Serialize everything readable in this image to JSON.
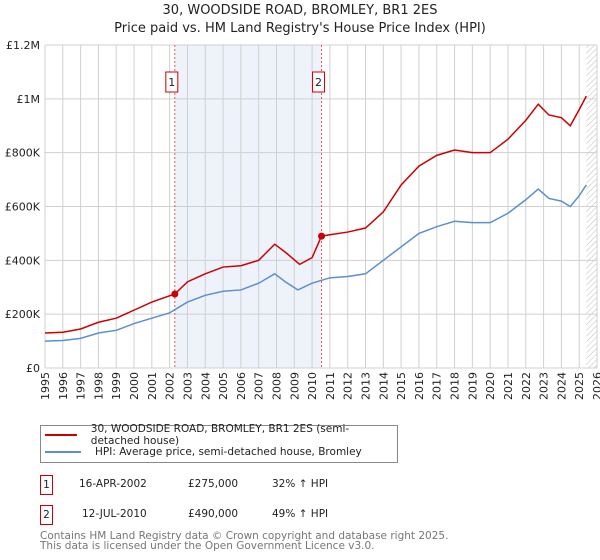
{
  "chart_data": {
    "type": "line",
    "title": "30, WOODSIDE ROAD, BROMLEY, BR1 2ES",
    "subtitle": "Price paid vs. HM Land Registry's House Price Index (HPI)",
    "xlim": [
      1995,
      2026
    ],
    "ylim": [
      0,
      1200000
    ],
    "x_ticks": [
      "1995",
      "1996",
      "1997",
      "1998",
      "1999",
      "2000",
      "2001",
      "2002",
      "2003",
      "2004",
      "2005",
      "2006",
      "2007",
      "2008",
      "2009",
      "2010",
      "2011",
      "2012",
      "2013",
      "2014",
      "2015",
      "2016",
      "2017",
      "2018",
      "2019",
      "2020",
      "2021",
      "2022",
      "2023",
      "2024",
      "2025",
      "2026"
    ],
    "y_ticks": [
      {
        "v": 0,
        "label": "£0"
      },
      {
        "v": 200000,
        "label": "£200K"
      },
      {
        "v": 400000,
        "label": "£400K"
      },
      {
        "v": 600000,
        "label": "£600K"
      },
      {
        "v": 800000,
        "label": "£800K"
      },
      {
        "v": 1000000,
        "label": "£1M"
      },
      {
        "v": 1200000,
        "label": "£1.2M"
      }
    ],
    "grid": true,
    "shaded_range": [
      2002.29,
      2010.53
    ],
    "hatched_from": 2025.4,
    "series": [
      {
        "name": "30, WOODSIDE ROAD, BROMLEY, BR1 2ES (semi-detached house)",
        "color": "#cc0000",
        "x": [
          1995,
          1996,
          1997,
          1998,
          1999,
          2000,
          2001,
          2002.29,
          2003,
          2004,
          2005,
          2006,
          2007,
          2007.9,
          2008.5,
          2009.3,
          2010,
          2010.53,
          2011,
          2012,
          2013,
          2014,
          2015,
          2016,
          2017,
          2018,
          2019,
          2020,
          2021,
          2022,
          2022.7,
          2023.3,
          2024,
          2024.5,
          2025,
          2025.4
        ],
        "y": [
          130000,
          133000,
          145000,
          170000,
          185000,
          215000,
          245000,
          275000,
          320000,
          350000,
          375000,
          380000,
          400000,
          460000,
          430000,
          385000,
          410000,
          490000,
          495000,
          505000,
          520000,
          580000,
          680000,
          750000,
          790000,
          810000,
          800000,
          800000,
          850000,
          920000,
          980000,
          940000,
          930000,
          900000,
          960000,
          1010000
        ]
      },
      {
        "name": "HPI: Average price, semi-detached house, Bromley",
        "color": "#5b8fd0",
        "x": [
          1995,
          1996,
          1997,
          1998,
          1999,
          2000,
          2001,
          2002,
          2003,
          2004,
          2005,
          2006,
          2007,
          2007.9,
          2008.5,
          2009.2,
          2010,
          2011,
          2012,
          2013,
          2014,
          2015,
          2016,
          2017,
          2018,
          2019,
          2020,
          2021,
          2022,
          2022.7,
          2023.3,
          2024,
          2024.5,
          2025,
          2025.4
        ],
        "y": [
          100000,
          102000,
          110000,
          130000,
          140000,
          165000,
          185000,
          205000,
          245000,
          270000,
          285000,
          290000,
          315000,
          350000,
          320000,
          290000,
          315000,
          335000,
          340000,
          350000,
          400000,
          450000,
          500000,
          525000,
          545000,
          540000,
          540000,
          575000,
          625000,
          665000,
          630000,
          620000,
          600000,
          640000,
          680000
        ]
      }
    ],
    "sales": [
      {
        "label": "1",
        "x": 2002.29,
        "y": 275000,
        "date": "16-APR-2002",
        "price": "£275,000",
        "hpi": "32% ↑ HPI"
      },
      {
        "label": "2",
        "x": 2010.53,
        "y": 490000,
        "date": "12-JUL-2010",
        "price": "£490,000",
        "hpi": "49% ↑ HPI"
      }
    ]
  },
  "footer": {
    "line1": "Contains HM Land Registry data © Crown copyright and database right 2025.",
    "line2": "This data is licensed under the Open Government Licence v3.0."
  }
}
